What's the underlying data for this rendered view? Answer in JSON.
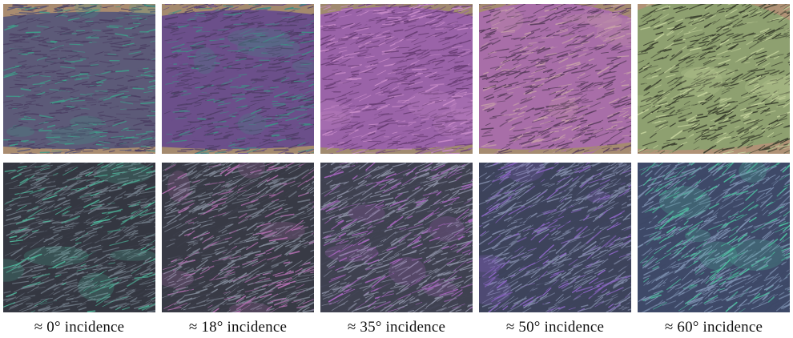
{
  "figure": {
    "columns": [
      {
        "caption": "≈ 0° incidence",
        "top_palette": [
          "#5c5a78",
          "#4b3f63",
          "#3f9e8a"
        ],
        "bottom_palette": [
          "#3a3c48",
          "#6f7a86",
          "#4fb59a"
        ],
        "top_bg": "#a98c70",
        "bottom_bg": "#2f3039"
      },
      {
        "caption": "≈ 18° incidence",
        "top_palette": [
          "#6b4f8a",
          "#4e3d66",
          "#3f8e86"
        ],
        "bottom_palette": [
          "#3d3f4c",
          "#7f8796",
          "#b26fb0"
        ],
        "top_bg": "#a48a6e",
        "bottom_bg": "#34353f"
      },
      {
        "caption": "≈ 35° incidence",
        "top_palette": [
          "#9a63a8",
          "#6a3e76",
          "#c98cc9"
        ],
        "bottom_palette": [
          "#444658",
          "#8a8ea3",
          "#a866c0"
        ],
        "top_bg": "#a08a6f",
        "bottom_bg": "#3a3b48"
      },
      {
        "caption": "≈ 50° incidence",
        "top_palette": [
          "#a86ea8",
          "#5a3d5e",
          "#c7a0a8"
        ],
        "bottom_palette": [
          "#3f4560",
          "#808aa8",
          "#8e66c8"
        ],
        "top_bg": "#a58b70",
        "bottom_bg": "#3b4056"
      },
      {
        "caption": "≈ 60° incidence",
        "top_palette": [
          "#8ea070",
          "#3a3f2e",
          "#c4d29c"
        ],
        "bottom_palette": [
          "#3d4866",
          "#7c90b0",
          "#4dbf9f"
        ],
        "top_bg": "#b09276",
        "bottom_bg": "#414c6a"
      }
    ]
  }
}
